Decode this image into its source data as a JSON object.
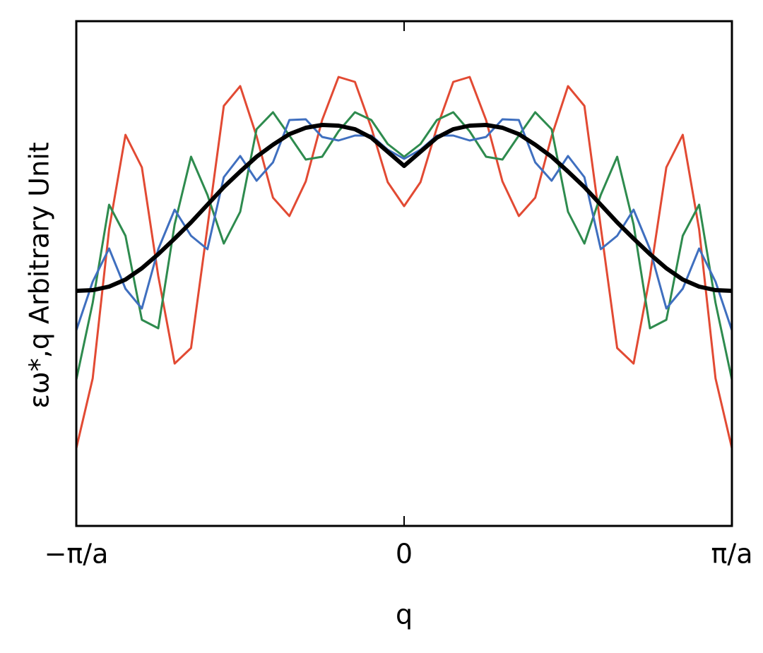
{
  "chart_data": {
    "type": "line",
    "xlabel": "q",
    "ylabel": "εω*,q Arbitrary Unit",
    "x": [
      -1,
      -0.95,
      -0.9,
      -0.85,
      -0.8,
      -0.75,
      -0.7,
      -0.65,
      -0.6,
      -0.55,
      -0.5,
      -0.45,
      -0.4,
      -0.35,
      -0.3,
      -0.25,
      -0.2,
      -0.15,
      -0.1,
      -0.05,
      0,
      0.05,
      0.1,
      0.15,
      0.2,
      0.25,
      0.3,
      0.35,
      0.4,
      0.45,
      0.5,
      0.55,
      0.6,
      0.65,
      0.7,
      0.75,
      0.8,
      0.85,
      0.9,
      0.95,
      1
    ],
    "series": [
      {
        "color": "#e24a33",
        "width": 3,
        "values": [
          110,
          209,
          420,
          554,
          508,
          354,
          230,
          252,
          423,
          595,
          623,
          552,
          465,
          439,
          488,
          575,
          636,
          629,
          564,
          487,
          453,
          487,
          564,
          629,
          636,
          575,
          488,
          439,
          465,
          552,
          623,
          595,
          423,
          252,
          230,
          354,
          508,
          554,
          420,
          209,
          110
        ]
      },
      {
        "color": "#2e8b4e",
        "width": 3,
        "values": [
          207,
          316,
          455,
          411,
          292,
          280,
          427,
          523,
          469,
          400,
          445,
          562,
          586,
          553,
          519,
          523,
          559,
          586,
          575,
          541,
          523,
          541,
          575,
          586,
          559,
          523,
          519,
          553,
          586,
          562,
          445,
          400,
          469,
          523,
          427,
          280,
          292,
          411,
          455,
          316,
          207
        ]
      },
      {
        "color": "#3f6fbf",
        "width": 3,
        "values": [
          277,
          346,
          393,
          336,
          308,
          392,
          448,
          411,
          392,
          494,
          524,
          489,
          515,
          575,
          576,
          551,
          546,
          553,
          553,
          533,
          520,
          533,
          553,
          553,
          546,
          551,
          576,
          575,
          515,
          489,
          524,
          494,
          392,
          411,
          448,
          392,
          308,
          336,
          393,
          346,
          277
        ]
      },
      {
        "color": "#000000",
        "width": 6,
        "values": [
          333,
          334,
          339,
          349,
          365,
          385,
          407,
          430,
          455,
          480,
          502,
          523,
          540,
          555,
          564,
          568,
          567,
          562,
          550,
          530,
          510,
          530,
          550,
          562,
          567,
          568,
          564,
          555,
          540,
          523,
          502,
          480,
          455,
          430,
          407,
          385,
          365,
          349,
          339,
          334,
          333
        ]
      }
    ],
    "xlim": [
      -1,
      1
    ],
    "ylim": [
      0,
      715
    ],
    "xticks": [
      {
        "value": -1,
        "label": "−π/a"
      },
      0,
      {
        "value": 1,
        "label": "π/a"
      }
    ]
  }
}
